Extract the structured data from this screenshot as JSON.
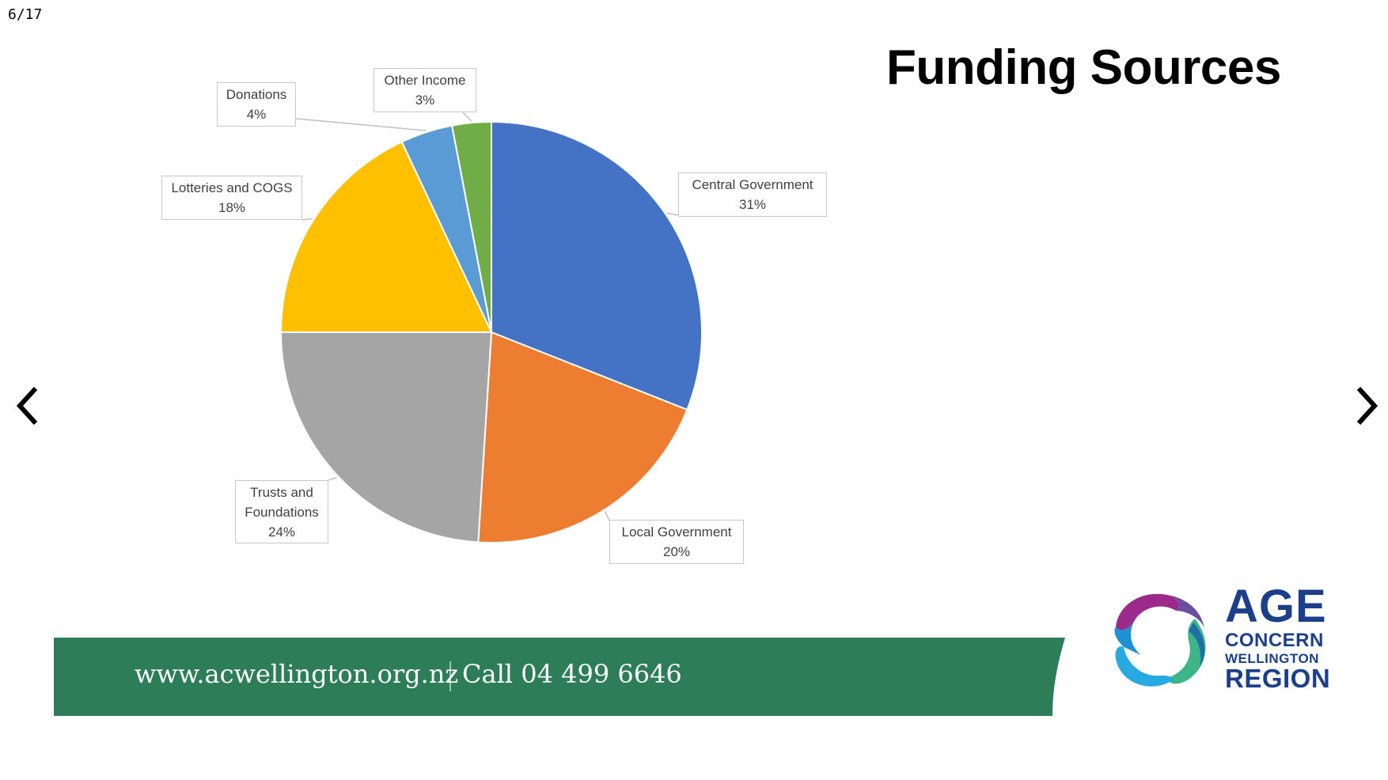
{
  "page_counter": "6/17",
  "slide": {
    "title": "Funding Sources"
  },
  "navigation": {
    "prev_icon": "chevron-left-icon",
    "next_icon": "chevron-right-icon"
  },
  "chart_data": {
    "type": "pie",
    "categories": [
      "Central Government",
      "Local Government",
      "Trusts and Foundations",
      "Lotteries and COGS",
      "Donations",
      "Other Income"
    ],
    "values": [
      31,
      20,
      24,
      18,
      4,
      3
    ],
    "value_labels": [
      "31%",
      "20%",
      "24%",
      "18%",
      "4%",
      "3%"
    ],
    "colors": [
      "#4472C4",
      "#ED7D31",
      "#A5A5A5",
      "#FFC000",
      "#5B9BD5",
      "#70AD47"
    ],
    "start_angle_deg": 0,
    "direction": "clockwise",
    "labels": [
      {
        "lines": [
          "Central Government"
        ],
        "pct": "31%"
      },
      {
        "lines": [
          "Local Government"
        ],
        "pct": "20%"
      },
      {
        "lines": [
          "Trusts and",
          "Foundations"
        ],
        "pct": "24%"
      },
      {
        "lines": [
          "Lotteries and COGS"
        ],
        "pct": "18%"
      },
      {
        "lines": [
          "Donations"
        ],
        "pct": "4%"
      },
      {
        "lines": [
          "Other Income"
        ],
        "pct": "3%"
      }
    ]
  },
  "footer": {
    "url": "www.acwellington.org.nz",
    "phone": "Call 04 499 6646",
    "banner_color": "#2E7D59"
  },
  "logo": {
    "line1": "AGE",
    "line2": "CONCERN",
    "line3": "WELLINGTON",
    "line4": "REGION",
    "text_color": "#1B3F8B",
    "icon": "swirl-logo-icon"
  }
}
